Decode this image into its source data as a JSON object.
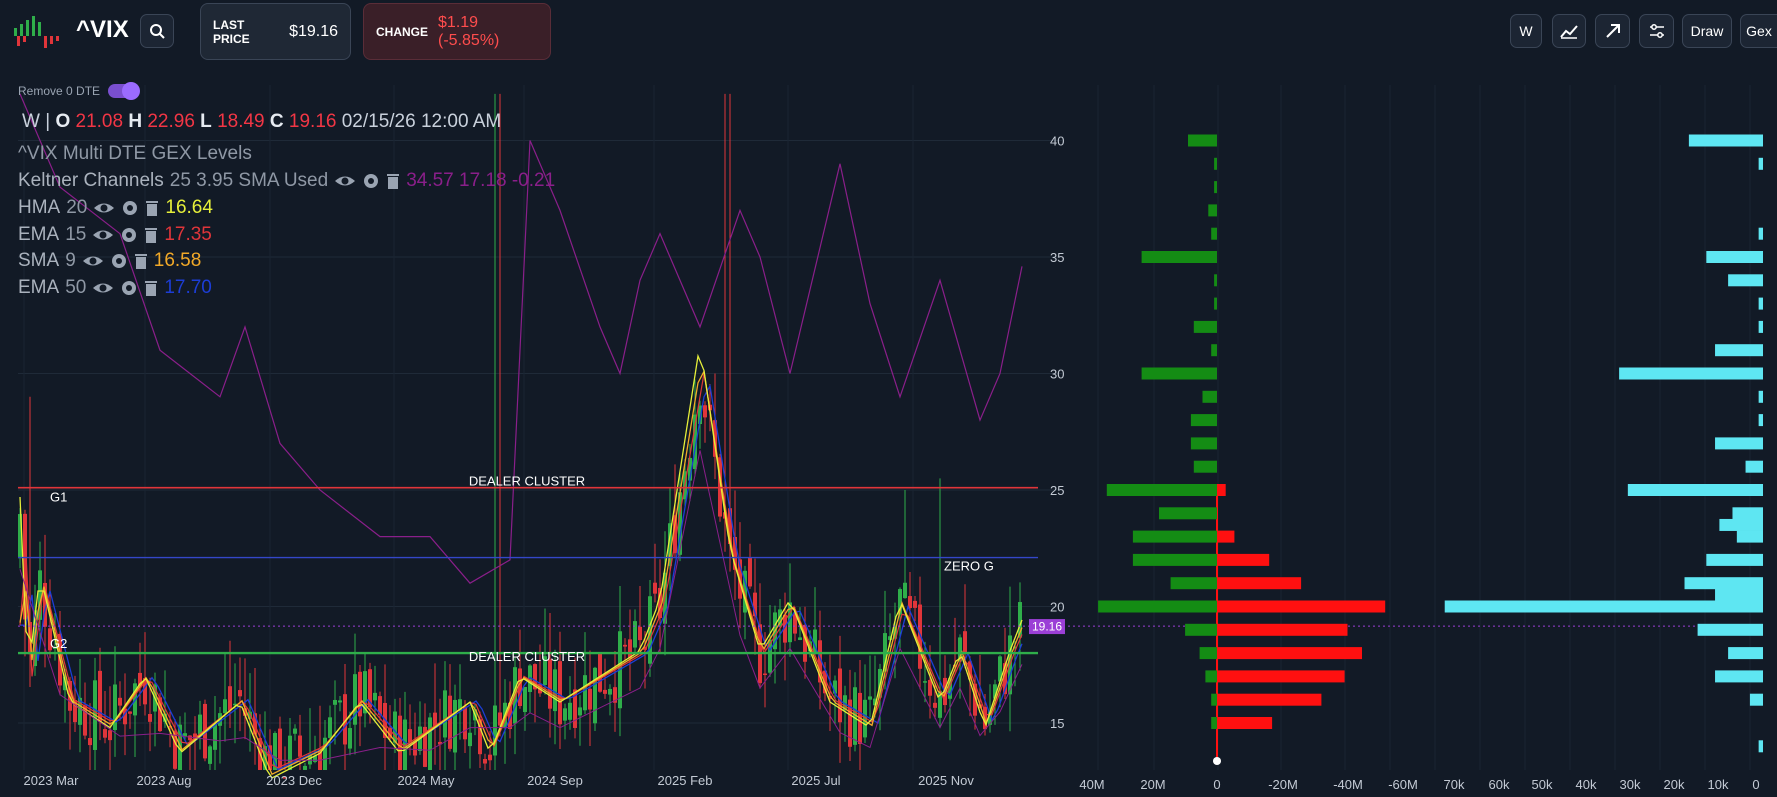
{
  "header": {
    "symbol": "^VIX",
    "last_price_label": "LAST PRICE",
    "last_price": "$19.16",
    "change_label": "CHANGE",
    "change_value": "$1.19 (-5.85%)",
    "tools": [
      {
        "label": "W",
        "icon": null
      },
      {
        "label": "",
        "icon": "chart-line-icon"
      },
      {
        "label": "",
        "icon": "arrow-up-right-icon"
      },
      {
        "label": "",
        "icon": "sliders-icon"
      },
      {
        "label": "Draw",
        "icon": null
      },
      {
        "label": "Gex",
        "icon": null
      }
    ]
  },
  "overlay": {
    "remove_dte_label": "Remove 0 DTE",
    "remove_dte_on": true,
    "ohlc": {
      "interval": "W",
      "o_label": "O",
      "o": "21.08",
      "h_label": "H",
      "h": "22.96",
      "l_label": "L",
      "l": "18.49",
      "c_label": "C",
      "c": "19.16",
      "datetime": "02/15/26 12:00 AM"
    },
    "study_title": "^VIX Multi DTE GEX Levels",
    "indicators": [
      {
        "name": "Keltner Channels",
        "params": "25 3.95 SMA Used",
        "values": "34.57 17.18 -0.21",
        "color": "#8a1f8a"
      },
      {
        "name": "HMA",
        "params": "20",
        "values": "16.64",
        "color": "#e6ef3a"
      },
      {
        "name": "EMA",
        "params": "15",
        "values": "17.35",
        "color": "#e0353a"
      },
      {
        "name": "SMA",
        "params": "9",
        "values": "16.58",
        "color": "#f2a928"
      },
      {
        "name": "EMA",
        "params": "50",
        "values": "17.70",
        "color": "#1c3dd6"
      }
    ]
  },
  "chart_levels": {
    "g1_label": "G1",
    "g2_label": "G2",
    "dealer_cluster_top": "DEALER CLUSTER",
    "dealer_cluster_bottom": "DEALER CLUSTER",
    "zero_g_label": "ZERO G",
    "current_price_tag": "19.16",
    "colors": {
      "bull": "#2fae4a",
      "bear": "#e0353a",
      "gex_pos": "#148c14",
      "gex_neg": "#ff1010",
      "vol": "#5ee6f2",
      "level_g1": "#e0353a",
      "level_zero": "#3447c9",
      "level_g2": "#2fae4a"
    }
  },
  "axes": {
    "time_labels": [
      "2023 Mar",
      "2023 Aug",
      "2023 Dec",
      "2024 May",
      "2024 Sep",
      "2025 Feb",
      "2025 Jul",
      "2025 Nov"
    ],
    "price_labels": [
      "40",
      "35",
      "30",
      "25",
      "20",
      "15"
    ],
    "gex_labels": [
      "40M",
      "20M",
      "0",
      "-20M",
      "-40M",
      "-60M"
    ],
    "vol_labels": [
      "70k",
      "60k",
      "50k",
      "40k",
      "30k",
      "20k",
      "10k",
      "0"
    ]
  },
  "chart_data": {
    "type": "bar",
    "title": "^VIX Multi DTE GEX Levels",
    "price_axis": {
      "min": 13,
      "max": 42,
      "ticks": [
        40,
        35,
        30,
        25,
        20,
        15
      ]
    },
    "gex_positive_by_strike": [
      {
        "strike": 40,
        "value": 10
      },
      {
        "strike": 39,
        "value": 1
      },
      {
        "strike": 38,
        "value": 1
      },
      {
        "strike": 37,
        "value": 3
      },
      {
        "strike": 36,
        "value": 2
      },
      {
        "strike": 35,
        "value": 26
      },
      {
        "strike": 34,
        "value": 1
      },
      {
        "strike": 33,
        "value": 1
      },
      {
        "strike": 32,
        "value": 8
      },
      {
        "strike": 31,
        "value": 2
      },
      {
        "strike": 30,
        "value": 26
      },
      {
        "strike": 29,
        "value": 5
      },
      {
        "strike": 28,
        "value": 9
      },
      {
        "strike": 27,
        "value": 9
      },
      {
        "strike": 26,
        "value": 8
      },
      {
        "strike": 25,
        "value": 38
      },
      {
        "strike": 24,
        "value": 20
      },
      {
        "strike": 23,
        "value": 29
      },
      {
        "strike": 22,
        "value": 29
      },
      {
        "strike": 21,
        "value": 16
      },
      {
        "strike": 20,
        "value": 41
      },
      {
        "strike": 19,
        "value": 11
      },
      {
        "strike": 18,
        "value": 6
      },
      {
        "strike": 17,
        "value": 4
      },
      {
        "strike": 16,
        "value": 2
      },
      {
        "strike": 15,
        "value": 2
      }
    ],
    "gex_negative_by_strike": [
      {
        "strike": 25,
        "value": 3
      },
      {
        "strike": 23,
        "value": 6
      },
      {
        "strike": 22,
        "value": 18
      },
      {
        "strike": 21,
        "value": 29
      },
      {
        "strike": 20,
        "value": 58
      },
      {
        "strike": 19,
        "value": 45
      },
      {
        "strike": 18,
        "value": 50
      },
      {
        "strike": 17,
        "value": 44
      },
      {
        "strike": 16,
        "value": 36
      },
      {
        "strike": 15,
        "value": 19
      }
    ],
    "volume_by_strike": [
      {
        "strike": 40,
        "value": 17
      },
      {
        "strike": 39,
        "value": 1
      },
      {
        "strike": 36,
        "value": 1
      },
      {
        "strike": 35,
        "value": 13
      },
      {
        "strike": 34,
        "value": 8
      },
      {
        "strike": 33,
        "value": 1
      },
      {
        "strike": 32,
        "value": 1
      },
      {
        "strike": 31,
        "value": 11
      },
      {
        "strike": 30,
        "value": 33
      },
      {
        "strike": 29,
        "value": 1
      },
      {
        "strike": 28,
        "value": 1
      },
      {
        "strike": 27,
        "value": 11
      },
      {
        "strike": 26,
        "value": 4
      },
      {
        "strike": 25,
        "value": 31
      },
      {
        "strike": 24,
        "value": 7
      },
      {
        "strike": 23.5,
        "value": 10
      },
      {
        "strike": 23,
        "value": 6
      },
      {
        "strike": 22,
        "value": 13
      },
      {
        "strike": 21,
        "value": 18
      },
      {
        "strike": 20.5,
        "value": 11
      },
      {
        "strike": 20,
        "value": 73
      },
      {
        "strike": 19,
        "value": 15
      },
      {
        "strike": 18,
        "value": 8
      },
      {
        "strike": 17,
        "value": 11
      },
      {
        "strike": 16,
        "value": 3
      },
      {
        "strike": 14,
        "value": 1
      }
    ],
    "levels": {
      "g1": 25.1,
      "zero_g": 22.1,
      "g2": 18.0,
      "last": 19.16
    }
  }
}
